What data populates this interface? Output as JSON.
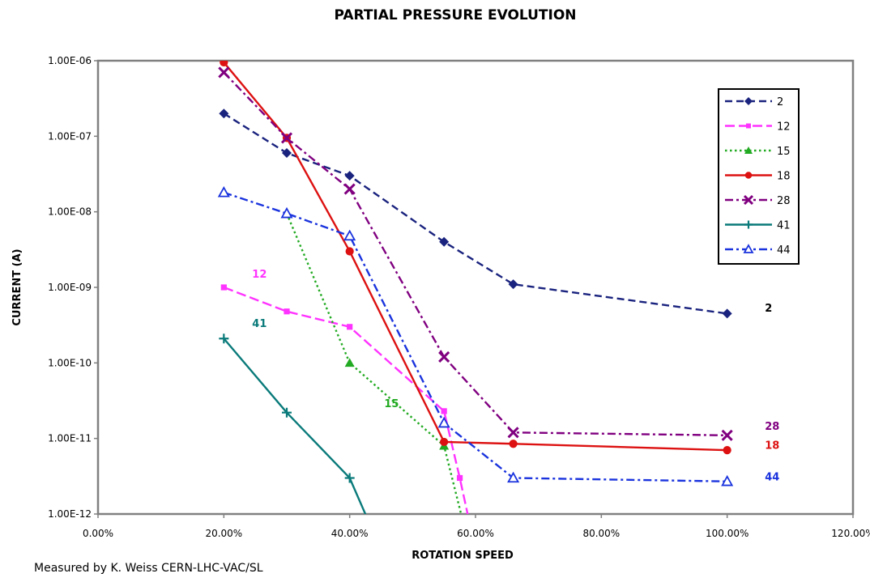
{
  "chart_data": {
    "type": "line",
    "title": "PARTIAL PRESSURE EVOLUTION",
    "xlabel": "ROTATION SPEED",
    "ylabel": "CURRENT (A)",
    "xlim": [
      0,
      1.2
    ],
    "ylim": [
      1e-12,
      1e-06
    ],
    "yscale": "log",
    "x_ticks": [
      "0.00%",
      "20.00%",
      "40.00%",
      "60.00%",
      "80.00%",
      "100.00%",
      "120.00%"
    ],
    "y_ticks": [
      "1.00E-12",
      "1.00E-11",
      "1.00E-10",
      "1.00E-09",
      "1.00E-08",
      "1.00E-07",
      "1.00E-06"
    ],
    "legend_position": "top-right",
    "series": [
      {
        "name": "2",
        "color": "#1a237e",
        "dash": "dash",
        "marker": "diamond",
        "x": [
          0.2,
          0.3,
          0.4,
          0.55,
          0.66,
          1.0
        ],
        "y": [
          2e-07,
          6e-08,
          3e-08,
          4e-09,
          1.1e-09,
          4.5e-10
        ]
      },
      {
        "name": "12",
        "color": "#ff33ff",
        "dash": "longdash",
        "marker": "square",
        "x": [
          0.2,
          0.3,
          0.4,
          0.55,
          0.575,
          0.59
        ],
        "y": [
          1e-09,
          4.8e-10,
          3e-10,
          2.3e-11,
          3e-12,
          8e-13
        ]
      },
      {
        "name": "15",
        "color": "#22aa22",
        "dash": "dot",
        "marker": "triangle",
        "x": [
          0.3,
          0.4,
          0.55,
          0.58
        ],
        "y": [
          9.5e-09,
          1e-10,
          8e-12,
          8e-13
        ]
      },
      {
        "name": "18",
        "color": "#dd1111",
        "dash": "solid",
        "marker": "circle",
        "x": [
          0.2,
          0.3,
          0.4,
          0.55,
          0.66,
          1.0
        ],
        "y": [
          9.5e-07,
          9.5e-08,
          3e-09,
          9e-12,
          8.5e-12,
          7e-12
        ]
      },
      {
        "name": "28",
        "color": "#800080",
        "dash": "dashdot",
        "marker": "x",
        "x": [
          0.2,
          0.3,
          0.4,
          0.55,
          0.66,
          1.0
        ],
        "y": [
          7e-07,
          9.5e-08,
          2e-08,
          1.2e-10,
          1.2e-11,
          1.1e-11
        ]
      },
      {
        "name": "41",
        "color": "#0a7a7a",
        "dash": "solid",
        "marker": "plus",
        "x": [
          0.2,
          0.3,
          0.4,
          0.43
        ],
        "y": [
          2.1e-10,
          2.2e-11,
          3e-12,
          8e-13
        ]
      },
      {
        "name": "44",
        "color": "#1a33dd",
        "dash": "dashdot",
        "marker": "open-triangle",
        "x": [
          0.2,
          0.3,
          0.4,
          0.55,
          0.66,
          1.0
        ],
        "y": [
          1.8e-08,
          9.5e-09,
          4.8e-09,
          1.6e-11,
          3e-12,
          2.7e-12
        ]
      }
    ],
    "annotations": [
      {
        "text": "2",
        "x": 1.06,
        "y": 4.8e-10,
        "color": "#000000"
      },
      {
        "text": "12",
        "x": 0.245,
        "y": 1.35e-09,
        "color": "#ff33ff"
      },
      {
        "text": "41",
        "x": 0.245,
        "y": 3e-10,
        "color": "#0a7a7a"
      },
      {
        "text": "15",
        "x": 0.455,
        "y": 2.6e-11,
        "color": "#22aa22"
      },
      {
        "text": "28",
        "x": 1.06,
        "y": 1.3e-11,
        "color": "#800080"
      },
      {
        "text": "18",
        "x": 1.06,
        "y": 7.3e-12,
        "color": "#dd1111"
      },
      {
        "text": "44",
        "x": 1.06,
        "y": 2.8e-12,
        "color": "#1a33dd"
      }
    ]
  },
  "footer": "Measured by  K. Weiss  CERN-LHC-VAC/SL"
}
